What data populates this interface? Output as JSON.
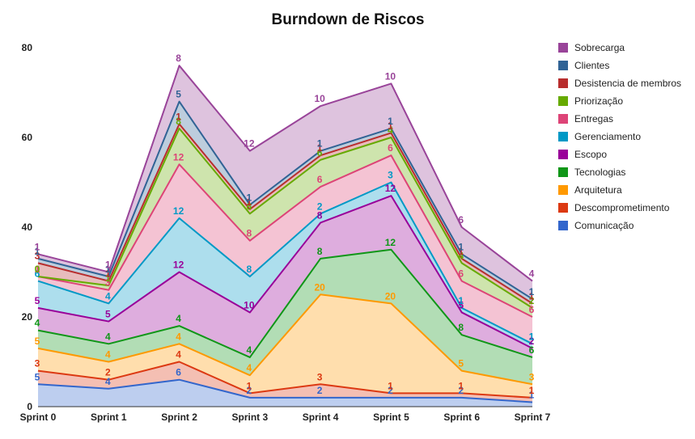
{
  "chart_data": {
    "type": "area",
    "stacked": true,
    "title": "Burndown de Riscos",
    "xlabel": "",
    "ylabel": "",
    "ylim": [
      0,
      80
    ],
    "yticks": [
      0,
      20,
      40,
      60,
      80
    ],
    "grid": false,
    "legend_position": "right",
    "categories": [
      "Sprint 0",
      "Sprint 1",
      "Sprint 2",
      "Sprint 3",
      "Sprint 4",
      "Sprint 5",
      "Sprint 6",
      "Sprint 7"
    ],
    "series": [
      {
        "name": "Comunicação",
        "color": "#3366cc",
        "values": [
          5,
          4,
          6,
          2,
          2,
          2,
          2,
          1
        ]
      },
      {
        "name": "Descomprometimento",
        "color": "#dc3912",
        "values": [
          3,
          2,
          4,
          1,
          3,
          1,
          1,
          1
        ]
      },
      {
        "name": "Arquitetura",
        "color": "#ff9900",
        "values": [
          5,
          4,
          4,
          4,
          20,
          20,
          5,
          3
        ]
      },
      {
        "name": "Tecnologias",
        "color": "#109618",
        "values": [
          4,
          4,
          4,
          4,
          8,
          12,
          8,
          6
        ]
      },
      {
        "name": "Escopo",
        "color": "#990099",
        "values": [
          5,
          5,
          12,
          10,
          8,
          12,
          5,
          2
        ]
      },
      {
        "name": "Gerenciamento",
        "color": "#0099c6",
        "values": [
          6,
          4,
          12,
          8,
          2,
          3,
          1,
          1
        ]
      },
      {
        "name": "Entregas",
        "color": "#dd4477",
        "values": [
          1,
          3,
          12,
          8,
          6,
          6,
          6,
          6
        ]
      },
      {
        "name": "Priorização",
        "color": "#66aa00",
        "values": [
          0,
          1,
          8,
          6,
          6,
          4,
          4,
          2
        ]
      },
      {
        "name": "Desistencia de membros",
        "color": "#b82e2e",
        "values": [
          3,
          1,
          1,
          1,
          1,
          1,
          1,
          1
        ]
      },
      {
        "name": "Clientes",
        "color": "#316395",
        "values": [
          1,
          1,
          5,
          1,
          1,
          1,
          1,
          1
        ]
      },
      {
        "name": "Sobrecarga",
        "color": "#994499",
        "values": [
          1,
          1,
          8,
          12,
          10,
          10,
          6,
          4
        ]
      }
    ]
  }
}
